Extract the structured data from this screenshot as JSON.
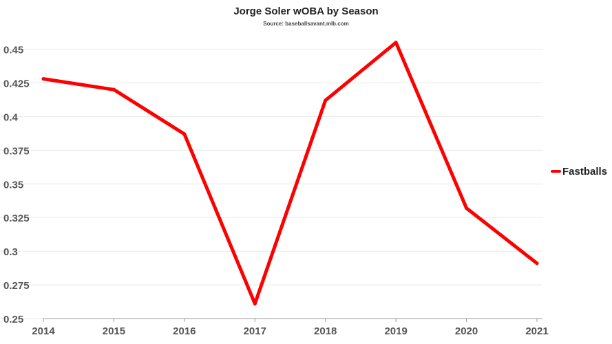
{
  "chart_data": {
    "type": "line",
    "title": "Jorge Soler wOBA by Season",
    "subtitle": "Source: baseballsavant.mlb.com",
    "xlabel": "",
    "ylabel": "",
    "categories": [
      "2014",
      "2015",
      "2016",
      "2017",
      "2018",
      "2019",
      "2020",
      "2021"
    ],
    "series": [
      {
        "name": "Fastballs",
        "values": [
          0.428,
          0.42,
          0.387,
          0.261,
          0.412,
          0.455,
          0.332,
          0.291
        ]
      }
    ],
    "ylim": [
      0.25,
      0.46
    ],
    "yticks": [
      "0.25",
      "0.275",
      "0.3",
      "0.325",
      "0.35",
      "0.375",
      "0.4",
      "0.425",
      "0.45"
    ],
    "grid": true,
    "legend": "right",
    "colors": {
      "Fastballs": "#ff0000"
    }
  }
}
